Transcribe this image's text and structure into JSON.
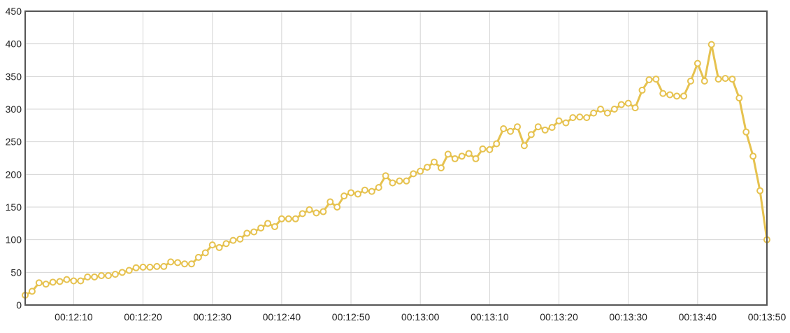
{
  "chart_data": {
    "type": "line",
    "title": "",
    "xlabel": "",
    "ylabel": "",
    "grid": true,
    "legend": "none",
    "series_color": "#e6c24f",
    "frame_color": "#555555",
    "grid_color": "#d4d4d4",
    "x_range": [
      "00:12:03",
      "00:13:50"
    ],
    "ylim": [
      0,
      450
    ],
    "y_ticks": [
      0,
      50,
      100,
      150,
      200,
      250,
      300,
      350,
      400,
      450
    ],
    "x_ticks": [
      "00:12:10",
      "00:12:20",
      "00:12:30",
      "00:12:40",
      "00:12:50",
      "00:13:00",
      "00:13:10",
      "00:13:20",
      "00:13:30",
      "00:13:40",
      "00:13:50"
    ],
    "x": [
      "00:12:03",
      "00:12:04",
      "00:12:05",
      "00:12:06",
      "00:12:07",
      "00:12:08",
      "00:12:09",
      "00:12:10",
      "00:12:11",
      "00:12:12",
      "00:12:13",
      "00:12:14",
      "00:12:15",
      "00:12:16",
      "00:12:17",
      "00:12:18",
      "00:12:19",
      "00:12:20",
      "00:12:21",
      "00:12:22",
      "00:12:23",
      "00:12:24",
      "00:12:25",
      "00:12:26",
      "00:12:27",
      "00:12:28",
      "00:12:29",
      "00:12:30",
      "00:12:31",
      "00:12:32",
      "00:12:33",
      "00:12:34",
      "00:12:35",
      "00:12:36",
      "00:12:37",
      "00:12:38",
      "00:12:39",
      "00:12:40",
      "00:12:41",
      "00:12:42",
      "00:12:43",
      "00:12:44",
      "00:12:45",
      "00:12:46",
      "00:12:47",
      "00:12:48",
      "00:12:49",
      "00:12:50",
      "00:12:51",
      "00:12:52",
      "00:12:53",
      "00:12:54",
      "00:12:55",
      "00:12:56",
      "00:12:57",
      "00:12:58",
      "00:12:59",
      "00:13:00",
      "00:13:01",
      "00:13:02",
      "00:13:03",
      "00:13:04",
      "00:13:05",
      "00:13:06",
      "00:13:07",
      "00:13:08",
      "00:13:09",
      "00:13:10",
      "00:13:11",
      "00:13:12",
      "00:13:13",
      "00:13:14",
      "00:13:15",
      "00:13:16",
      "00:13:17",
      "00:13:18",
      "00:13:19",
      "00:13:20",
      "00:13:21",
      "00:13:22",
      "00:13:23",
      "00:13:24",
      "00:13:25",
      "00:13:26",
      "00:13:27",
      "00:13:28",
      "00:13:29",
      "00:13:30",
      "00:13:31",
      "00:13:32",
      "00:13:33",
      "00:13:34",
      "00:13:35",
      "00:13:36",
      "00:13:37",
      "00:13:38",
      "00:13:39",
      "00:13:40",
      "00:13:41",
      "00:13:42",
      "00:13:43",
      "00:13:44",
      "00:13:45",
      "00:13:46",
      "00:13:47",
      "00:13:48",
      "00:13:49",
      "00:13:50"
    ],
    "series": [
      {
        "values": [
          15,
          21,
          34,
          32,
          35,
          36,
          39,
          37,
          37,
          43,
          43,
          45,
          45,
          47,
          50,
          53,
          57,
          58,
          58,
          59,
          59,
          66,
          65,
          63,
          63,
          73,
          80,
          92,
          88,
          94,
          99,
          101,
          110,
          112,
          118,
          125,
          120,
          132,
          132,
          132,
          140,
          146,
          141,
          143,
          158,
          150,
          167,
          172,
          170,
          176,
          174,
          180,
          198,
          187,
          190,
          190,
          201,
          205,
          211,
          219,
          210,
          231,
          224,
          228,
          232,
          224,
          239,
          238,
          247,
          270,
          266,
          273,
          244,
          261,
          273,
          268,
          272,
          282,
          279,
          287,
          288,
          287,
          294,
          300,
          294,
          300,
          307,
          309,
          302,
          329,
          345,
          346,
          324,
          322,
          320,
          320,
          343,
          370,
          343,
          399,
          346,
          347,
          346,
          317,
          265,
          228,
          175,
          100
        ]
      }
    ]
  }
}
